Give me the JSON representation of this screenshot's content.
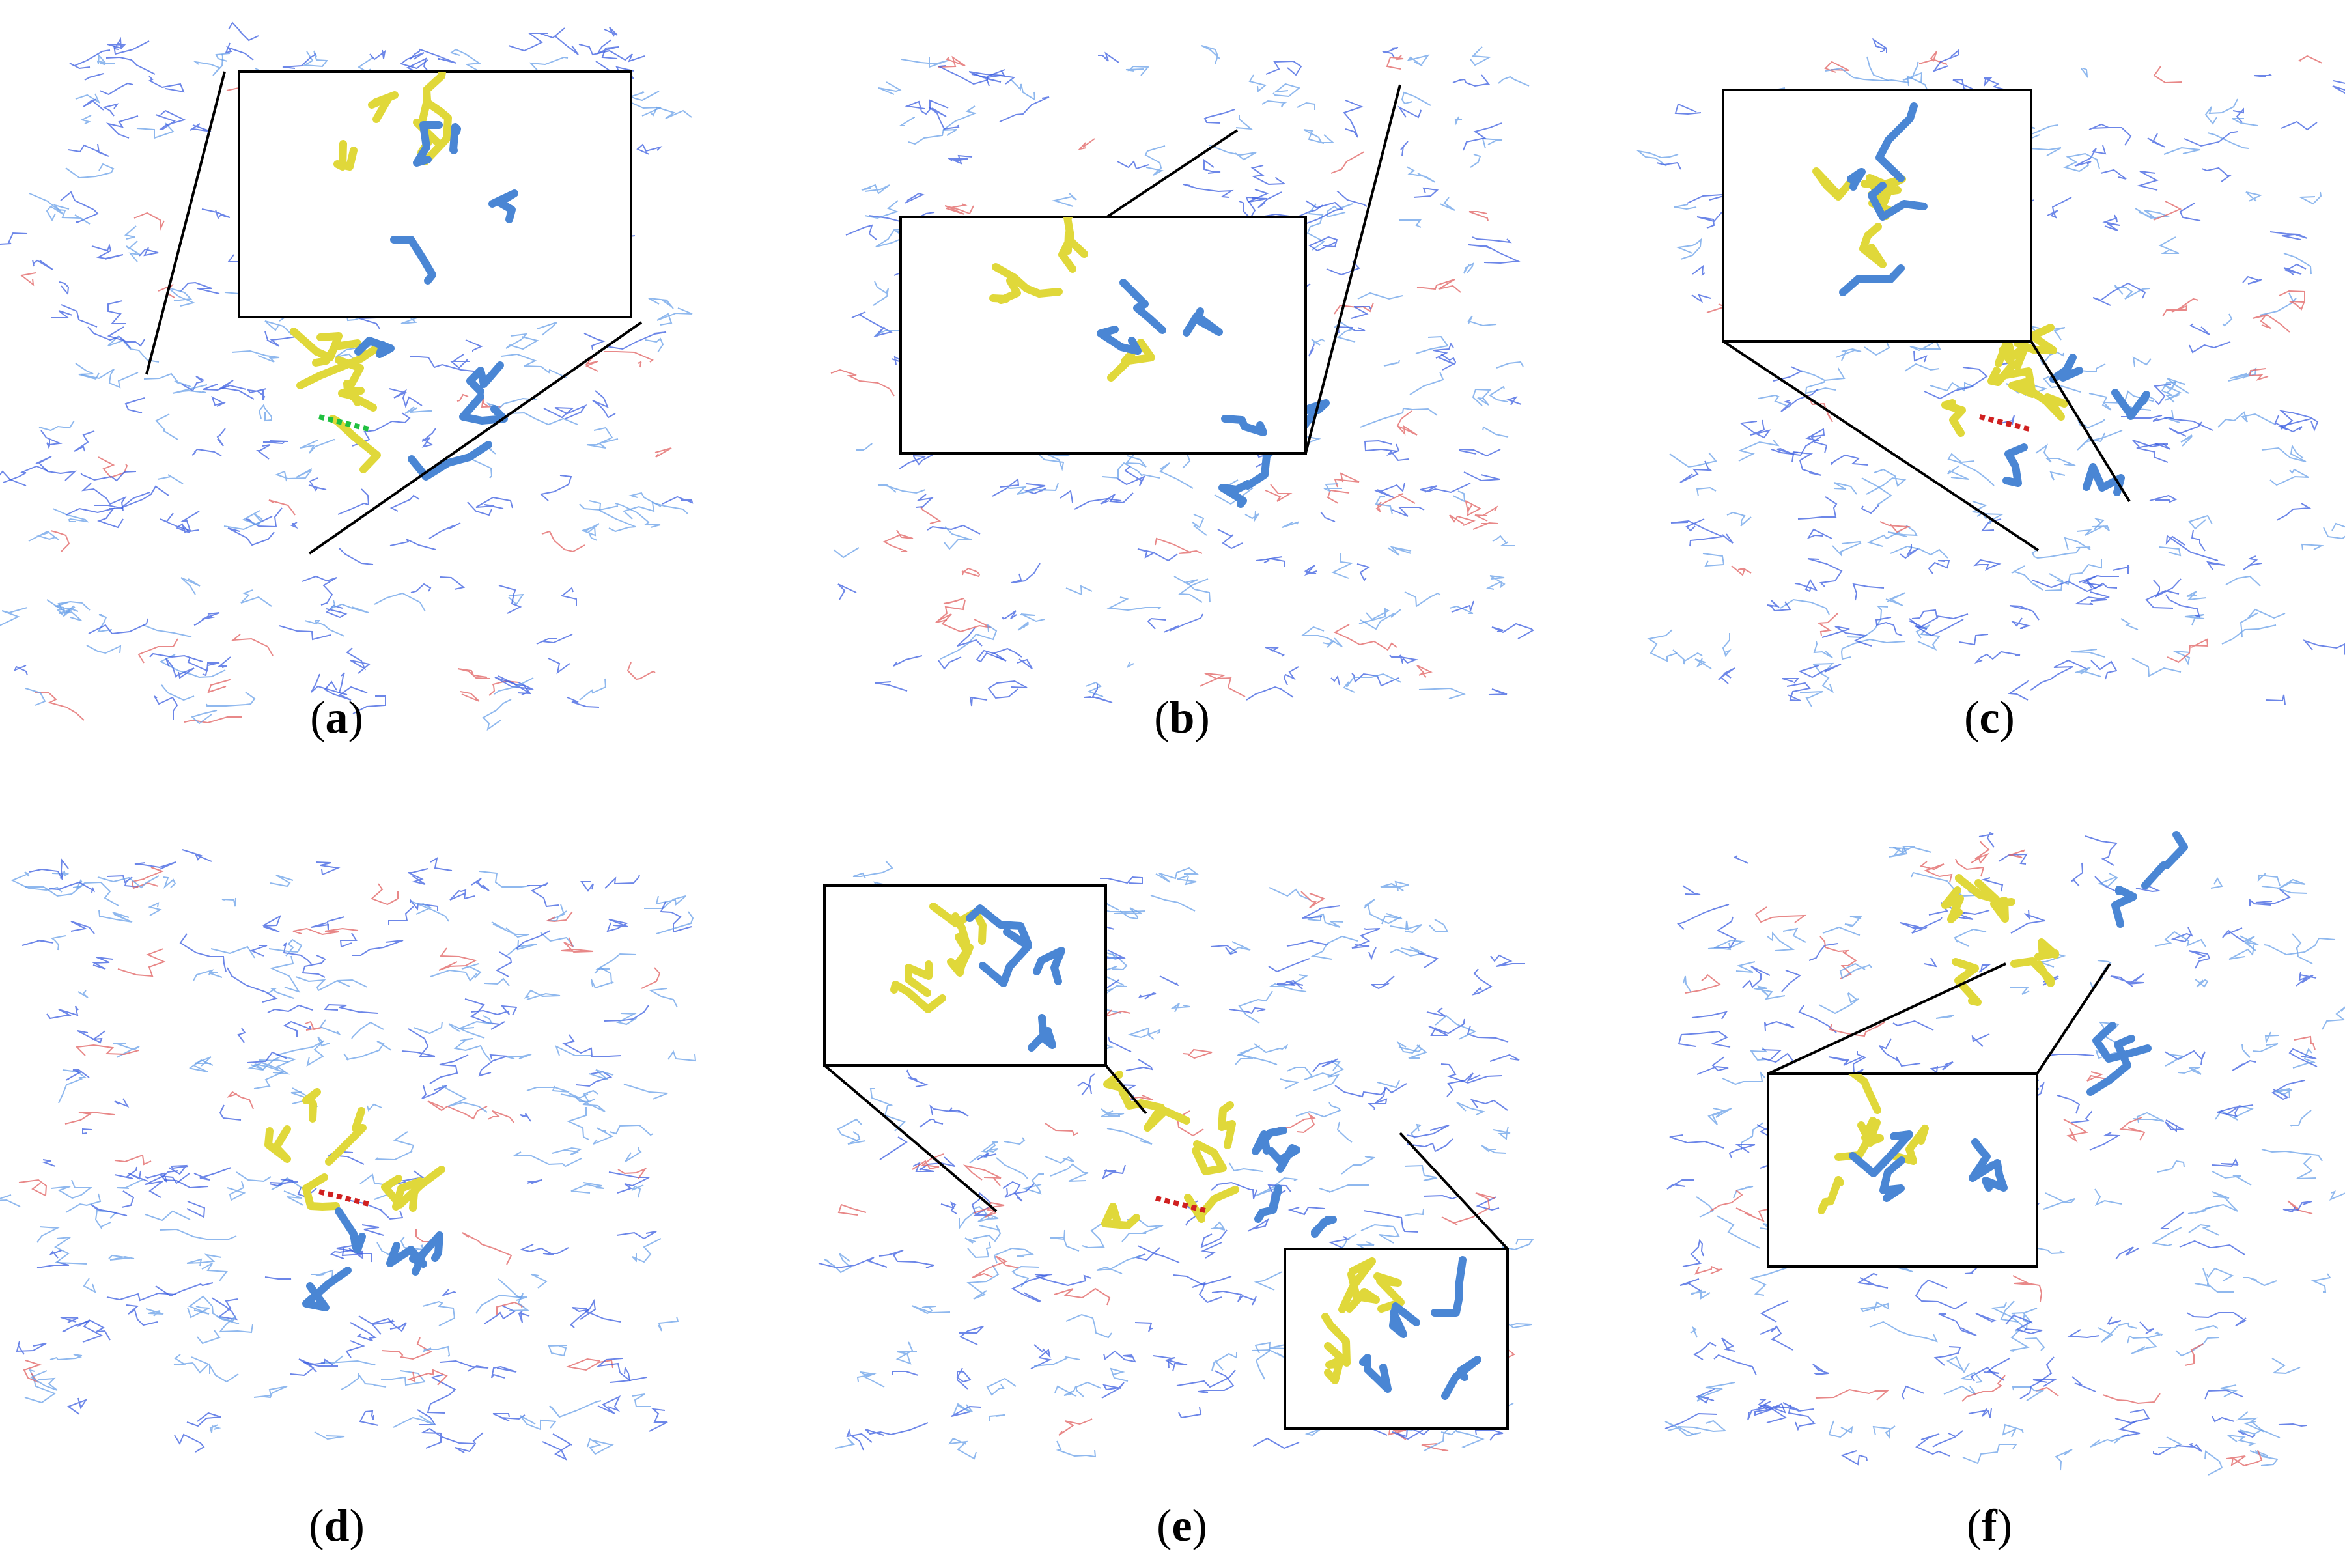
{
  "label_open": "(",
  "label_close": ")",
  "panels": [
    {
      "letter": "a"
    },
    {
      "letter": "b"
    },
    {
      "letter": "c"
    },
    {
      "letter": "d"
    },
    {
      "letter": "e"
    },
    {
      "letter": "f"
    }
  ]
}
